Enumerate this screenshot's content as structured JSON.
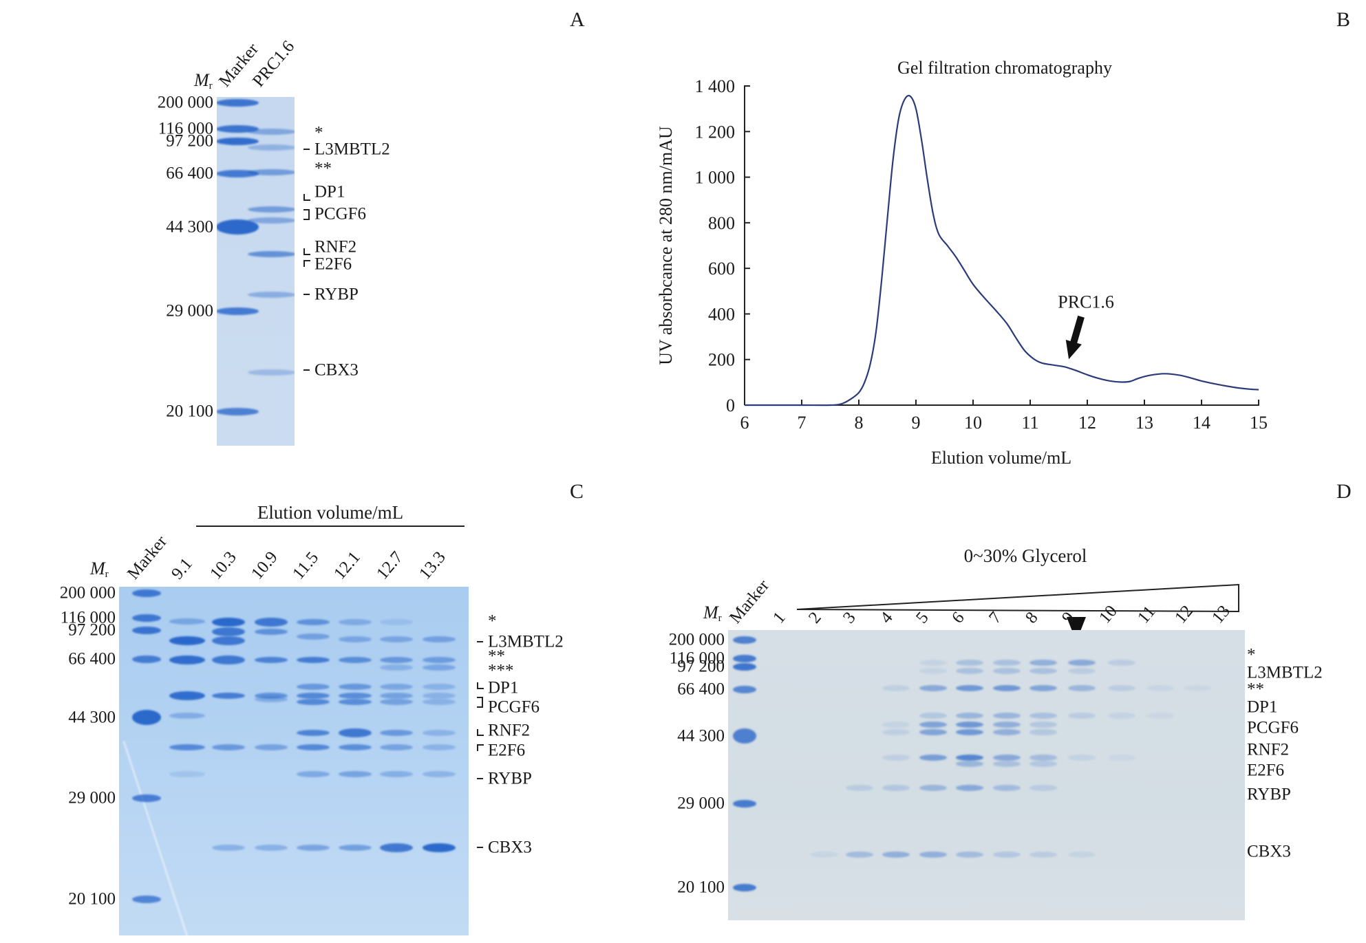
{
  "figure": {
    "panels": {
      "A": {
        "letter": "A",
        "mr_label": "M",
        "mr_sub": "r",
        "lanes": [
          "Marker",
          "PRC1.6"
        ],
        "marker_labels": [
          "200 000",
          "116 000",
          "97 200",
          "66 400",
          "44 300",
          "29 000",
          "20 100"
        ],
        "protein_labels": [
          "*",
          "L3MBTL2",
          "**",
          "DP1",
          "PCGF6",
          "RNF2",
          "E2F6",
          "RYBP",
          "CBX3"
        ]
      },
      "B": {
        "letter": "B"
      },
      "C": {
        "letter": "C",
        "header": "Elution volume/mL",
        "mr_label": "M",
        "mr_sub": "r",
        "lanes": [
          "Marker",
          "9.1",
          "10.3",
          "10.9",
          "11.5",
          "12.1",
          "12.7",
          "13.3"
        ],
        "marker_labels": [
          "200 000",
          "116 000",
          "97 200",
          "66 400",
          "44 300",
          "29 000",
          "20 100"
        ],
        "protein_labels": [
          "*",
          "L3MBTL2",
          "**",
          "***",
          "DP1",
          "PCGF6",
          "RNF2",
          "E2F6",
          "RYBP",
          "CBX3"
        ]
      },
      "D": {
        "letter": "D",
        "header": "0~30% Glycerol",
        "mr_label": "M",
        "mr_sub": "r",
        "lanes": [
          "Marker",
          "1",
          "2",
          "3",
          "4",
          "5",
          "6",
          "7",
          "8",
          "9",
          "10",
          "11",
          "12",
          "13"
        ],
        "highlighted_lane": "9",
        "marker_labels": [
          "200 000",
          "116 000",
          "97 200",
          "66 400",
          "44 300",
          "29 000",
          "20 100"
        ],
        "protein_labels": [
          "*",
          "L3MBTL2",
          "**",
          "DP1",
          "PCGF6",
          "RNF2",
          "E2F6",
          "RYBP",
          "CBX3"
        ]
      }
    },
    "colors": {
      "stain": "#1f5fc8",
      "curve": "#2b3a7a",
      "text": "#1a1a1a"
    }
  },
  "chart_data": {
    "type": "line",
    "title": "Gel filtration chromatography",
    "xlabel": "Elution volume/mL",
    "ylabel": "UV absorbcance at 280 nm/mAU",
    "xlim": [
      6,
      15
    ],
    "ylim": [
      0,
      1400
    ],
    "xticks": [
      "6",
      "7",
      "8",
      "9",
      "10",
      "11",
      "12",
      "13",
      "14",
      "15"
    ],
    "yticks": [
      "0",
      "200",
      "400",
      "600",
      "800",
      "1 000",
      "1 200",
      "1 400"
    ],
    "grid": false,
    "legend": "none",
    "annotation": {
      "text": "PRC1.6",
      "x": 11.7,
      "y": 165
    },
    "series": [
      {
        "name": "A280",
        "x": [
          6,
          7,
          7.5,
          7.7,
          7.85,
          8.0,
          8.1,
          8.2,
          8.3,
          8.4,
          8.5,
          8.6,
          8.7,
          8.8,
          8.9,
          9.0,
          9.1,
          9.2,
          9.3,
          9.4,
          9.55,
          9.7,
          9.85,
          10.0,
          10.2,
          10.4,
          10.6,
          10.75,
          10.9,
          11.05,
          11.2,
          11.4,
          11.6,
          11.8,
          12.0,
          12.2,
          12.4,
          12.6,
          12.75,
          12.9,
          13.1,
          13.35,
          13.6,
          13.8,
          14.0,
          14.3,
          14.6,
          14.85,
          15.0
        ],
        "y": [
          0,
          0,
          0,
          6,
          25,
          55,
          100,
          180,
          320,
          550,
          820,
          1080,
          1260,
          1340,
          1355,
          1300,
          1160,
          990,
          840,
          750,
          700,
          650,
          590,
          530,
          470,
          415,
          355,
          295,
          240,
          205,
          185,
          176,
          168,
          152,
          133,
          117,
          106,
          101,
          104,
          118,
          131,
          138,
          132,
          120,
          106,
          90,
          77,
          70,
          68
        ]
      }
    ]
  },
  "gel_data": {
    "C": {
      "lanes": [
        [
          [
            "200 000",
            0.85
          ],
          [
            "116 000",
            0.85
          ],
          [
            "97 200",
            0.9
          ],
          [
            "66 400",
            0.8
          ],
          [
            "44 300",
            1.0
          ],
          [
            "29 000",
            0.8
          ],
          [
            "20 100",
            0.75
          ]
        ],
        [
          [
            114,
            0.4
          ],
          [
            95,
            1.0
          ],
          [
            72,
            0.95
          ],
          [
            52,
            0.95
          ],
          [
            44,
            0.35
          ],
          [
            38,
            0.7
          ],
          [
            32,
            0.15
          ]
        ],
        [
          [
            112,
            1.0
          ],
          [
            100,
            0.85
          ],
          [
            95,
            0.85
          ],
          [
            72,
            0.85
          ],
          [
            52,
            0.8
          ],
          [
            38,
            0.55
          ],
          [
            24,
            0.35
          ]
        ],
        [
          [
            112,
            0.85
          ],
          [
            100,
            0.6
          ],
          [
            72,
            0.75
          ],
          [
            52,
            0.6
          ],
          [
            49,
            0.35
          ],
          [
            38,
            0.45
          ],
          [
            24,
            0.35
          ]
        ],
        [
          [
            112,
            0.6
          ],
          [
            98,
            0.45
          ],
          [
            72,
            0.8
          ],
          [
            55,
            0.55
          ],
          [
            52,
            0.7
          ],
          [
            48,
            0.7
          ],
          [
            40,
            0.75
          ],
          [
            38,
            0.7
          ],
          [
            32,
            0.4
          ],
          [
            24,
            0.45
          ]
        ],
        [
          [
            112,
            0.35
          ],
          [
            97,
            0.4
          ],
          [
            72,
            0.65
          ],
          [
            55,
            0.55
          ],
          [
            52,
            0.65
          ],
          [
            48,
            0.65
          ],
          [
            40,
            0.85
          ],
          [
            38,
            0.65
          ],
          [
            32,
            0.45
          ],
          [
            24,
            0.5
          ]
        ],
        [
          [
            112,
            0.15
          ],
          [
            97,
            0.4
          ],
          [
            72,
            0.55
          ],
          [
            68,
            0.3
          ],
          [
            55,
            0.4
          ],
          [
            52,
            0.45
          ],
          [
            48,
            0.45
          ],
          [
            40,
            0.55
          ],
          [
            38,
            0.45
          ],
          [
            32,
            0.35
          ],
          [
            24,
            0.85
          ]
        ],
        [
          [
            97,
            0.45
          ],
          [
            72,
            0.5
          ],
          [
            68,
            0.4
          ],
          [
            55,
            0.3
          ],
          [
            52,
            0.3
          ],
          [
            48,
            0.3
          ],
          [
            40,
            0.3
          ],
          [
            38,
            0.3
          ],
          [
            32,
            0.3
          ],
          [
            24,
            1.0
          ]
        ]
      ]
    },
    "A": {
      "lanes": [
        [
          [
            "200 000",
            0.9
          ],
          [
            "116 000",
            0.9
          ],
          [
            "97 200",
            0.95
          ],
          [
            "66 400",
            0.85
          ],
          [
            "44 300",
            1.0
          ],
          [
            "29 000",
            0.85
          ],
          [
            "20 100",
            0.8
          ]
        ],
        [
          [
            112,
            0.45
          ],
          [
            95,
            0.35
          ],
          [
            72,
            0.55
          ],
          [
            52,
            0.55
          ],
          [
            49,
            0.45
          ],
          [
            38,
            0.65
          ],
          [
            32,
            0.4
          ],
          [
            24,
            0.3
          ]
        ]
      ]
    },
    "D": {
      "lanes": [
        [
          [
            "200 000",
            0.8
          ],
          [
            "116 000",
            0.85
          ],
          [
            "97 200",
            0.9
          ],
          [
            "66 400",
            0.75
          ],
          [
            "44 300",
            0.8
          ],
          [
            "29 000",
            0.85
          ],
          [
            "20 100",
            0.85
          ]
        ],
        [],
        [
          [
            24,
            0.08
          ]
        ],
        [
          [
            32,
            0.15
          ],
          [
            24,
            0.3
          ]
        ],
        [
          [
            72,
            0.12
          ],
          [
            52,
            0.1
          ],
          [
            49,
            0.12
          ],
          [
            40,
            0.12
          ],
          [
            32,
            0.2
          ],
          [
            24,
            0.4
          ]
        ],
        [
          [
            112,
            0.1
          ],
          [
            97,
            0.1
          ],
          [
            72,
            0.45
          ],
          [
            55,
            0.2
          ],
          [
            52,
            0.5
          ],
          [
            49,
            0.5
          ],
          [
            40,
            0.55
          ],
          [
            32,
            0.35
          ],
          [
            24,
            0.4
          ]
        ],
        [
          [
            112,
            0.25
          ],
          [
            97,
            0.25
          ],
          [
            72,
            0.6
          ],
          [
            55,
            0.35
          ],
          [
            52,
            0.6
          ],
          [
            49,
            0.6
          ],
          [
            40,
            0.75
          ],
          [
            38,
            0.35
          ],
          [
            32,
            0.45
          ],
          [
            24,
            0.3
          ]
        ],
        [
          [
            112,
            0.25
          ],
          [
            97,
            0.25
          ],
          [
            72,
            0.6
          ],
          [
            55,
            0.35
          ],
          [
            52,
            0.4
          ],
          [
            49,
            0.4
          ],
          [
            40,
            0.45
          ],
          [
            38,
            0.25
          ],
          [
            32,
            0.3
          ],
          [
            24,
            0.2
          ]
        ],
        [
          [
            112,
            0.4
          ],
          [
            97,
            0.25
          ],
          [
            72,
            0.5
          ],
          [
            55,
            0.25
          ],
          [
            52,
            0.2
          ],
          [
            49,
            0.2
          ],
          [
            40,
            0.3
          ],
          [
            38,
            0.2
          ],
          [
            32,
            0.15
          ],
          [
            24,
            0.15
          ]
        ],
        [
          [
            112,
            0.45
          ],
          [
            97,
            0.15
          ],
          [
            72,
            0.35
          ],
          [
            55,
            0.15
          ],
          [
            40,
            0.1
          ],
          [
            24,
            0.1
          ]
        ],
        [
          [
            112,
            0.15
          ],
          [
            72,
            0.15
          ],
          [
            55,
            0.1
          ],
          [
            40,
            0.06
          ]
        ],
        [
          [
            72,
            0.08
          ],
          [
            55,
            0.06
          ]
        ],
        [
          [
            72,
            0.06
          ]
        ],
        []
      ]
    }
  }
}
